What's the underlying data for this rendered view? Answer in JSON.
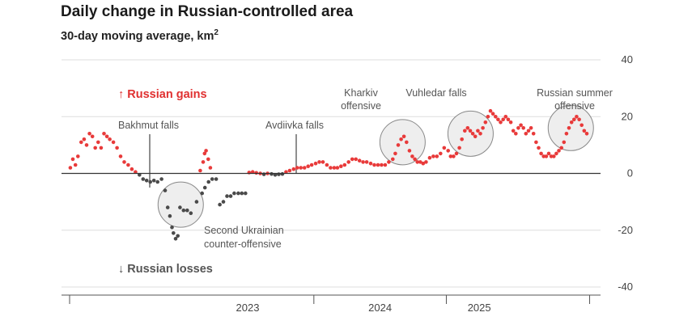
{
  "title": "Daily change in Russian-controlled area",
  "subtitle": "30-day moving average, km",
  "subtitle_sup": "2",
  "labels": {
    "gains": "↑ Russian gains",
    "losses": "↓ Russian losses"
  },
  "annotations": {
    "bakhmut": "Bakhmut falls",
    "avdiivka": "Avdiivka falls",
    "kharkiv_1": "Kharkiv",
    "kharkiv_2": "offensive",
    "vuhledar": "Vuhledar falls",
    "summer_1": "Russian summer",
    "summer_2": "offensive",
    "ukr_1": "Second Ukrainian",
    "ukr_2": "counter-offensive"
  },
  "colors": {
    "gain": "#e83a3a",
    "loss": "#4a4a4a",
    "grid": "#dddddd",
    "zero": "#333333",
    "circle_fill": "#eeeeee",
    "circle_stroke": "#888888"
  },
  "chart_data": {
    "type": "scatter",
    "ylim": [
      -40,
      40
    ],
    "yticks": [
      40,
      20,
      0,
      -20,
      -40
    ],
    "xticks": [
      {
        "date": "2023-07-01",
        "label": "2023"
      },
      {
        "date": "2024-07-01",
        "label": "2024"
      },
      {
        "date": "2025-04-01",
        "label": "2025"
      }
    ],
    "grid": true,
    "series": [
      {
        "points": [
          [
            "2022-02-26",
            2
          ],
          [
            "2022-03-05",
            5
          ],
          [
            "2022-03-12",
            3
          ],
          [
            "2022-03-19",
            6
          ],
          [
            "2022-03-28",
            11
          ],
          [
            "2022-04-05",
            12
          ],
          [
            "2022-04-12",
            10
          ],
          [
            "2022-04-20",
            14
          ],
          [
            "2022-04-28",
            13
          ],
          [
            "2022-05-06",
            9
          ],
          [
            "2022-05-14",
            11
          ],
          [
            "2022-05-22",
            9
          ],
          [
            "2022-05-30",
            14
          ],
          [
            "2022-06-07",
            13
          ],
          [
            "2022-06-15",
            12
          ],
          [
            "2022-06-25",
            11
          ],
          [
            "2022-07-05",
            9
          ],
          [
            "2022-07-15",
            6
          ],
          [
            "2022-07-25",
            4
          ],
          [
            "2022-08-05",
            3
          ],
          [
            "2022-08-15",
            1.5
          ],
          [
            "2022-08-25",
            0.5
          ],
          [
            "2022-09-05",
            -0.5
          ],
          [
            "2022-09-15",
            -2
          ],
          [
            "2022-09-25",
            -2.5
          ],
          [
            "2022-10-05",
            -3
          ],
          [
            "2022-10-15",
            -2.5
          ],
          [
            "2022-10-25",
            -3
          ],
          [
            "2022-11-05",
            -2
          ],
          [
            "2022-11-15",
            -6
          ],
          [
            "2022-11-22",
            -12
          ],
          [
            "2022-11-28",
            -15
          ],
          [
            "2022-12-04",
            -19
          ],
          [
            "2022-12-08",
            -21
          ],
          [
            "2022-12-14",
            -23
          ],
          [
            "2022-12-20",
            -22
          ],
          [
            "2022-12-26",
            -12
          ],
          [
            "2023-01-05",
            -13
          ],
          [
            "2023-01-15",
            -13
          ],
          [
            "2023-01-25",
            -14
          ],
          [
            "2023-02-10",
            -10
          ],
          [
            "2023-02-25",
            -7
          ],
          [
            "2023-03-05",
            -5
          ],
          [
            "2023-03-15",
            -3
          ],
          [
            "2023-03-25",
            -2
          ],
          [
            "2023-04-05",
            -2
          ],
          [
            "2023-02-20",
            1
          ],
          [
            "2023-02-28",
            4
          ],
          [
            "2023-03-04",
            7
          ],
          [
            "2023-03-08",
            8
          ],
          [
            "2023-03-14",
            5
          ],
          [
            "2023-03-20",
            2
          ],
          [
            "2023-04-15",
            -11
          ],
          [
            "2023-04-25",
            -10
          ],
          [
            "2023-05-05",
            -8
          ],
          [
            "2023-05-15",
            -8
          ],
          [
            "2023-05-25",
            -7
          ],
          [
            "2023-06-05",
            -7
          ],
          [
            "2023-06-15",
            -7
          ],
          [
            "2023-06-25",
            -7
          ],
          [
            "2023-07-05",
            0.3
          ],
          [
            "2023-07-15",
            0.5
          ],
          [
            "2023-07-25",
            0.2
          ],
          [
            "2023-08-05",
            0
          ],
          [
            "2023-08-15",
            -0.3
          ],
          [
            "2023-08-25",
            0
          ],
          [
            "2023-09-05",
            -0.2
          ],
          [
            "2023-09-15",
            -0.5
          ],
          [
            "2023-09-25",
            -0.3
          ],
          [
            "2023-10-05",
            -0.2
          ],
          [
            "2023-10-15",
            0.5
          ],
          [
            "2023-10-25",
            1
          ],
          [
            "2023-11-05",
            1.5
          ],
          [
            "2023-11-15",
            2
          ],
          [
            "2023-11-25",
            2
          ],
          [
            "2023-12-05",
            2
          ],
          [
            "2023-12-15",
            2.5
          ],
          [
            "2023-12-25",
            3
          ],
          [
            "2024-01-05",
            3.5
          ],
          [
            "2024-01-15",
            4
          ],
          [
            "2024-01-25",
            4
          ],
          [
            "2024-02-05",
            3
          ],
          [
            "2024-02-15",
            2
          ],
          [
            "2024-02-25",
            2
          ],
          [
            "2024-03-05",
            2
          ],
          [
            "2024-03-15",
            2.5
          ],
          [
            "2024-03-25",
            3
          ],
          [
            "2024-04-05",
            4
          ],
          [
            "2024-04-15",
            5
          ],
          [
            "2024-04-25",
            5
          ],
          [
            "2024-05-05",
            4.5
          ],
          [
            "2024-05-15",
            4
          ],
          [
            "2024-05-25",
            4
          ],
          [
            "2024-06-05",
            3.5
          ],
          [
            "2024-06-15",
            3
          ],
          [
            "2024-06-25",
            3
          ],
          [
            "2024-07-05",
            3
          ],
          [
            "2024-07-15",
            3
          ],
          [
            "2024-07-25",
            4
          ],
          [
            "2024-08-05",
            5
          ],
          [
            "2024-08-12",
            7
          ],
          [
            "2024-08-20",
            10
          ],
          [
            "2024-08-28",
            12
          ],
          [
            "2024-09-05",
            13
          ],
          [
            "2024-09-12",
            11
          ],
          [
            "2024-09-20",
            8
          ],
          [
            "2024-09-28",
            6
          ],
          [
            "2024-10-05",
            5
          ],
          [
            "2024-10-12",
            4
          ],
          [
            "2024-10-20",
            4
          ],
          [
            "2024-10-28",
            3.5
          ],
          [
            "2024-11-05",
            4
          ],
          [
            "2024-11-15",
            5.5
          ],
          [
            "2024-11-25",
            6
          ],
          [
            "2024-12-05",
            6
          ],
          [
            "2024-12-15",
            7
          ],
          [
            "2024-12-25",
            9
          ],
          [
            "2025-01-05",
            8
          ],
          [
            "2025-01-12",
            6
          ],
          [
            "2025-01-20",
            6
          ],
          [
            "2025-01-28",
            7
          ],
          [
            "2025-02-05",
            9
          ],
          [
            "2025-02-12",
            12
          ],
          [
            "2025-02-20",
            15
          ],
          [
            "2025-02-28",
            16
          ],
          [
            "2025-03-07",
            15
          ],
          [
            "2025-03-14",
            14
          ],
          [
            "2025-03-21",
            13
          ],
          [
            "2025-03-28",
            15
          ],
          [
            "2025-04-04",
            14
          ],
          [
            "2025-04-11",
            16
          ],
          [
            "2025-04-18",
            18
          ],
          [
            "2025-04-25",
            20
          ],
          [
            "2025-05-02",
            22
          ],
          [
            "2025-05-09",
            21
          ],
          [
            "2025-05-16",
            20
          ],
          [
            "2025-05-23",
            19
          ],
          [
            "2025-05-30",
            18
          ],
          [
            "2025-06-06",
            19
          ],
          [
            "2025-06-13",
            20
          ],
          [
            "2025-06-20",
            19
          ],
          [
            "2025-06-27",
            18
          ],
          [
            "2025-07-04",
            15
          ],
          [
            "2025-07-11",
            14
          ],
          [
            "2025-07-18",
            16
          ],
          [
            "2025-07-25",
            17
          ],
          [
            "2025-08-01",
            16
          ],
          [
            "2025-08-08",
            14
          ],
          [
            "2025-08-15",
            15
          ],
          [
            "2025-08-22",
            16
          ],
          [
            "2025-08-29",
            14
          ],
          [
            "2025-09-05",
            11
          ],
          [
            "2025-09-12",
            9
          ],
          [
            "2025-09-19",
            7
          ],
          [
            "2025-09-26",
            6
          ],
          [
            "2025-10-03",
            6
          ],
          [
            "2025-10-10",
            7
          ],
          [
            "2025-10-17",
            6
          ],
          [
            "2025-10-24",
            6
          ],
          [
            "2025-10-31",
            7
          ],
          [
            "2025-11-07",
            8
          ],
          [
            "2025-11-14",
            9
          ],
          [
            "2025-11-21",
            11
          ],
          [
            "2025-11-28",
            14
          ],
          [
            "2025-12-05",
            16
          ],
          [
            "2025-12-12",
            18
          ],
          [
            "2025-12-19",
            19
          ],
          [
            "2025-12-26",
            20
          ],
          [
            "2026-01-02",
            19
          ],
          [
            "2026-01-09",
            17
          ],
          [
            "2026-01-16",
            15
          ],
          [
            "2026-01-23",
            14
          ]
        ]
      }
    ]
  }
}
